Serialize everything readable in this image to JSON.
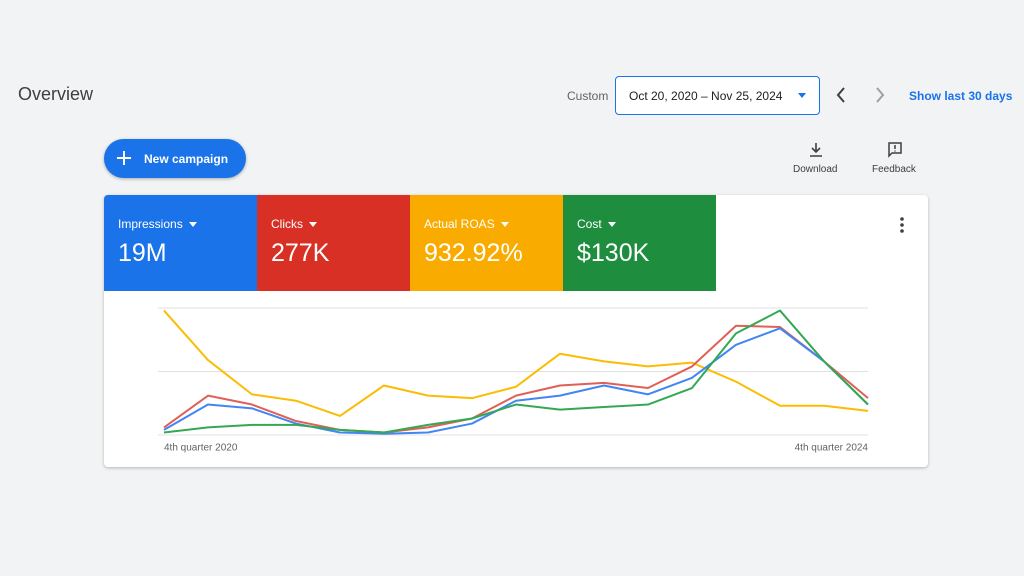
{
  "header": {
    "title": "Overview",
    "range_label": "Custom",
    "date_range": "Oct 20, 2020 – Nov 25, 2024",
    "show_last": "Show last 30 days"
  },
  "toolbar": {
    "new_campaign": "New campaign",
    "download": "Download",
    "feedback": "Feedback"
  },
  "metrics": [
    {
      "label": "Impressions",
      "value": "19M",
      "color": "#1a73e8"
    },
    {
      "label": "Clicks",
      "value": "277K",
      "color": "#d93025"
    },
    {
      "label": "Actual ROAS",
      "value": "932.92%",
      "color": "#f9ab00"
    },
    {
      "label": "Cost",
      "value": "$130K",
      "color": "#1e8e3e"
    }
  ],
  "chart_data": {
    "type": "line",
    "categories": [
      "4th quarter 2020",
      null,
      null,
      null,
      null,
      null,
      null,
      null,
      null,
      null,
      null,
      null,
      null,
      null,
      null,
      null,
      "4th quarter 2024"
    ],
    "ylim": [
      0,
      100
    ],
    "yticks": [
      0,
      50,
      100
    ],
    "grid": true,
    "series": [
      {
        "color": "#fbbc04",
        "values": [
          98,
          59,
          32,
          27,
          15,
          39,
          31,
          29,
          38,
          64,
          58,
          54,
          57,
          42,
          23,
          23,
          19
        ]
      },
      {
        "color": "#e06055",
        "values": [
          6,
          31,
          24,
          11,
          4,
          2,
          6,
          13,
          31,
          39,
          41,
          37,
          54,
          86,
          85,
          58,
          29
        ]
      },
      {
        "color": "#4285f4",
        "values": [
          4,
          24,
          21,
          9,
          2,
          1,
          2,
          9,
          27,
          31,
          39,
          32,
          45,
          71,
          84,
          58,
          24
        ]
      },
      {
        "color": "#34a853",
        "values": [
          2,
          6,
          8,
          8,
          4,
          2,
          8,
          13,
          24,
          20,
          22,
          24,
          37,
          80,
          98,
          58,
          24
        ]
      }
    ]
  }
}
